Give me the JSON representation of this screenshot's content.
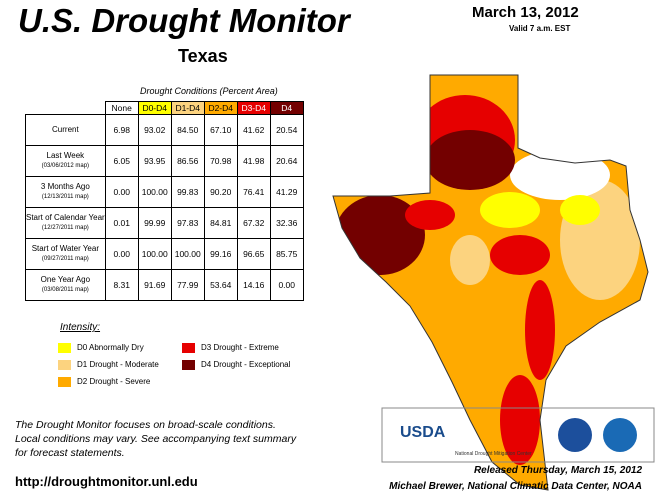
{
  "header": {
    "title": "U.S. Drought Monitor",
    "region": "Texas",
    "date": "March 13, 2012",
    "valid": "Valid 7 a.m. EST"
  },
  "table": {
    "caption": "Drought Conditions (Percent Area)",
    "columns": [
      {
        "label": "None",
        "color": "#ffffff",
        "text_color": "#000000"
      },
      {
        "label": "D0-D4",
        "color": "#ffff00",
        "text_color": "#000000"
      },
      {
        "label": "D1-D4",
        "color": "#fcd37f",
        "text_color": "#000000"
      },
      {
        "label": "D2-D4",
        "color": "#ffaa00",
        "text_color": "#000000"
      },
      {
        "label": "D3-D4",
        "color": "#e60000",
        "text_color": "#ffffff"
      },
      {
        "label": "D4",
        "color": "#730000",
        "text_color": "#ffffff"
      }
    ],
    "rows": [
      {
        "label": "Current",
        "values": [
          "6.98",
          "93.02",
          "84.50",
          "67.10",
          "41.62",
          "20.54"
        ]
      },
      {
        "label": "Last Week",
        "note": "(03/06/2012 map)",
        "values": [
          "6.05",
          "93.95",
          "86.56",
          "70.98",
          "41.98",
          "20.64"
        ]
      },
      {
        "label": "3 Months Ago",
        "note": "(12/13/2011 map)",
        "values": [
          "0.00",
          "100.00",
          "99.83",
          "90.20",
          "76.41",
          "41.29"
        ]
      },
      {
        "label": "Start of Calendar Year",
        "note": "(12/27/2011 map)",
        "values": [
          "0.01",
          "99.99",
          "97.83",
          "84.81",
          "67.32",
          "32.36"
        ]
      },
      {
        "label": "Start of Water Year",
        "note": "(09/27/2011 map)",
        "values": [
          "0.00",
          "100.00",
          "100.00",
          "99.16",
          "96.65",
          "85.75"
        ]
      },
      {
        "label": "One Year Ago",
        "note": "(03/08/2011 map)",
        "values": [
          "8.31",
          "91.69",
          "77.99",
          "53.64",
          "14.16",
          "0.00"
        ]
      }
    ]
  },
  "legend": {
    "title": "Intensity:",
    "items": [
      {
        "label": "D0 Abnormally Dry",
        "color": "#ffff00"
      },
      {
        "label": "D1 Drought - Moderate",
        "color": "#fcd37f"
      },
      {
        "label": "D2 Drought - Severe",
        "color": "#ffaa00"
      },
      {
        "label": "D3 Drought - Extreme",
        "color": "#e60000"
      },
      {
        "label": "D4 Drought - Exceptional",
        "color": "#730000"
      }
    ]
  },
  "footer": {
    "note": [
      "The Drought Monitor focuses on broad-scale conditions.",
      "Local conditions may vary. See accompanying text summary",
      "for forecast statements."
    ],
    "url": "http://droughtmonitor.unl.edu",
    "logos": {
      "usda": "USDA",
      "ndmc": "National Drought Mitigation Center"
    },
    "released": "Released Thursday, March 15, 2012",
    "author": "Michael Brewer, National Climatic Data Center, NOAA"
  }
}
